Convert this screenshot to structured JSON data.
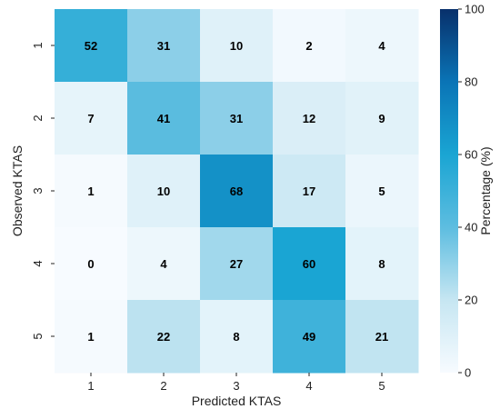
{
  "chart_data": {
    "type": "heatmap",
    "title": "",
    "xlabel": "Predicted KTAS",
    "ylabel": "Observed KTAS",
    "x_categories": [
      "1",
      "2",
      "3",
      "4",
      "5"
    ],
    "y_categories": [
      "1",
      "2",
      "3",
      "4",
      "5"
    ],
    "values": [
      [
        52,
        31,
        10,
        2,
        4
      ],
      [
        7,
        41,
        31,
        12,
        9
      ],
      [
        1,
        10,
        68,
        17,
        5
      ],
      [
        0,
        4,
        27,
        60,
        8
      ],
      [
        1,
        22,
        8,
        49,
        21
      ]
    ],
    "colorbar": {
      "label": "Percentage (%)",
      "min": 0,
      "max": 100,
      "ticks": [
        "0",
        "20",
        "40",
        "60",
        "80",
        "100"
      ],
      "colormap": [
        "#f7fbff",
        "#c6e6f2",
        "#5dbde0",
        "#1aa5d3",
        "#0a74b6",
        "#08306b"
      ]
    }
  }
}
